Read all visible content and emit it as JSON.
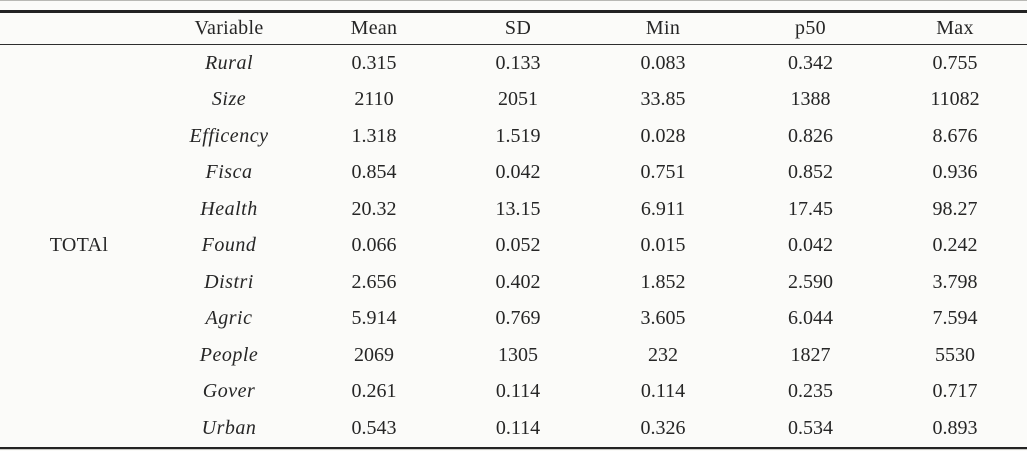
{
  "table": {
    "group_label": "TOTAl",
    "columns": [
      "Variable",
      "Mean",
      "SD",
      "Min",
      "p50",
      "Max"
    ],
    "rows": [
      {
        "variable": "Rural",
        "values": [
          "0.315",
          "0.133",
          "0.083",
          "0.342",
          "0.755"
        ]
      },
      {
        "variable": "Size",
        "values": [
          "2110",
          "2051",
          "33.85",
          "1388",
          "11082"
        ]
      },
      {
        "variable": "Efficency",
        "values": [
          "1.318",
          "1.519",
          "0.028",
          "0.826",
          "8.676"
        ]
      },
      {
        "variable": "Fisca",
        "values": [
          "0.854",
          "0.042",
          "0.751",
          "0.852",
          "0.936"
        ]
      },
      {
        "variable": "Health",
        "values": [
          "20.32",
          "13.15",
          "6.911",
          "17.45",
          "98.27"
        ]
      },
      {
        "variable": "Found",
        "values": [
          "0.066",
          "0.052",
          "0.015",
          "0.042",
          "0.242"
        ]
      },
      {
        "variable": "Distri",
        "values": [
          "2.656",
          "0.402",
          "1.852",
          "2.590",
          "3.798"
        ]
      },
      {
        "variable": "Agric",
        "values": [
          "5.914",
          "0.769",
          "3.605",
          "6.044",
          "7.594"
        ]
      },
      {
        "variable": "People",
        "values": [
          "2069",
          "1305",
          "232",
          "1827",
          "5530"
        ]
      },
      {
        "variable": "Gover",
        "values": [
          "0.261",
          "0.114",
          "0.114",
          "0.235",
          "0.717"
        ]
      },
      {
        "variable": "Urban",
        "values": [
          "0.543",
          "0.114",
          "0.326",
          "0.534",
          "0.893"
        ]
      }
    ]
  },
  "colors": {
    "text": "#262626",
    "rule_heavy": "#232323",
    "rule_light": "#b9b9b5",
    "background": "#fbfbf9"
  }
}
